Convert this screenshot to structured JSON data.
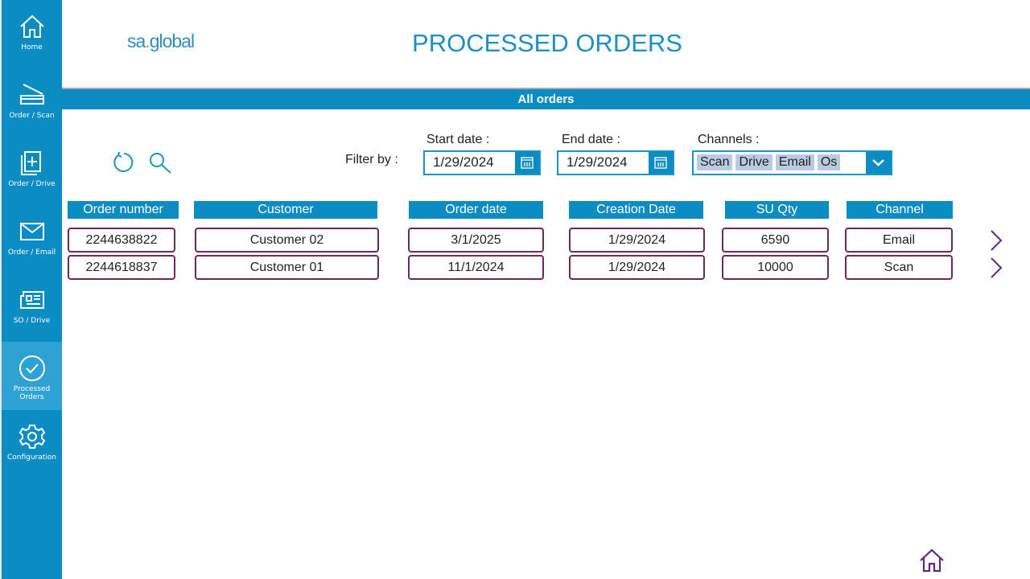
{
  "sidebar": {
    "items": [
      {
        "label": "Home",
        "icon": "home-icon"
      },
      {
        "label": "Order / Scan",
        "icon": "scanner-icon"
      },
      {
        "label": "Order / Drive",
        "icon": "add-document-icon"
      },
      {
        "label": "Order / Email",
        "icon": "mail-icon"
      },
      {
        "label": "SO / Drive",
        "icon": "newspaper-icon"
      },
      {
        "label": "Processed Orders",
        "icon": "check-circle-icon",
        "active": true
      },
      {
        "label": "Configuration",
        "icon": "gear-icon"
      }
    ]
  },
  "header": {
    "logo": "sa.global",
    "title": "PROCESSED ORDERS",
    "section": "All orders"
  },
  "filter": {
    "label": "Filter by :",
    "start_label": "Start date :",
    "start_value": "1/29/2024",
    "end_label": "End date :",
    "end_value": "1/29/2024",
    "channels_label": "Channels :",
    "channels": [
      "Scan",
      "Drive",
      "Email",
      "Os"
    ]
  },
  "table": {
    "columns": [
      "Order number",
      "Customer",
      "Order date",
      "Creation Date",
      "SU Qty",
      "Channel"
    ],
    "rows": [
      [
        "2244638822",
        "Customer 02",
        "3/1/2025",
        "1/29/2024",
        "6590",
        "Email"
      ],
      [
        "2244618837",
        "Customer 01",
        "11/1/2024",
        "1/29/2024",
        "10000",
        "Scan"
      ]
    ]
  },
  "colors": {
    "primary": "#0b8dc3",
    "border": "#6b2a56",
    "tag": "#b9cbe3"
  }
}
